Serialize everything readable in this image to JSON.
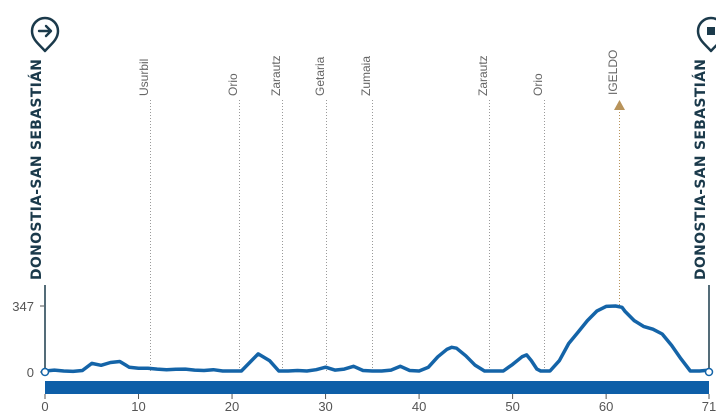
{
  "chart_data": {
    "type": "area",
    "title": "",
    "xlabel": "",
    "ylabel": "",
    "xlim": [
      0,
      71
    ],
    "ylim": [
      0,
      347
    ],
    "x_ticks": [
      0,
      10,
      20,
      30,
      40,
      50,
      60,
      71
    ],
    "y_ticks": [
      0,
      347
    ],
    "start_label": "DONOSTIA-SAN SEBASTIÁN",
    "finish_label": "DONOSTIA-SAN SEBASTIÁN",
    "start_icon": "arrow-right-pin-icon",
    "finish_icon": "finish-flag-pin-icon",
    "colors": {
      "profile": "#1464a8",
      "axis_band": "#0e5fa8",
      "city": "#1b3a4b",
      "climb_marker": "#b8935a"
    },
    "locations": [
      {
        "name": "Usurbil",
        "km": 11.2
      },
      {
        "name": "Orio",
        "km": 20.7
      },
      {
        "name": "Zarautz",
        "km": 25.3
      },
      {
        "name": "Getaria",
        "km": 30.0
      },
      {
        "name": "Zumaia",
        "km": 35.0
      },
      {
        "name": "Zarautz",
        "km": 47.5
      },
      {
        "name": "Orio",
        "km": 53.4
      },
      {
        "name": "IGELDO",
        "km": 61.4,
        "climb": true
      }
    ],
    "series": [
      {
        "x": [
          0,
          1,
          2,
          3,
          4,
          5,
          6,
          7,
          8,
          9,
          10,
          11,
          12,
          13,
          14,
          15,
          16,
          17,
          18,
          19,
          20,
          21,
          22,
          22.8,
          24,
          25,
          26,
          27,
          28,
          29,
          30,
          31,
          32,
          33,
          34,
          35,
          36,
          37,
          38,
          39,
          40,
          41,
          42,
          43,
          43.5,
          44,
          45,
          46,
          47,
          48,
          49,
          50,
          51,
          51.5,
          52,
          52.6,
          53,
          54,
          55,
          56,
          57,
          58,
          59,
          60,
          61,
          61.7,
          62,
          63,
          64,
          65,
          66,
          67,
          68,
          69,
          70,
          71
        ],
        "values": [
          5,
          10,
          5,
          3,
          8,
          45,
          35,
          50,
          55,
          25,
          20,
          20,
          15,
          12,
          14,
          15,
          10,
          8,
          12,
          5,
          5,
          5,
          55,
          95,
          60,
          5,
          5,
          8,
          5,
          12,
          25,
          10,
          15,
          30,
          8,
          5,
          5,
          10,
          30,
          8,
          5,
          25,
          80,
          120,
          130,
          125,
          85,
          35,
          5,
          5,
          5,
          40,
          80,
          90,
          60,
          15,
          5,
          5,
          60,
          150,
          210,
          270,
          320,
          345,
          347,
          340,
          320,
          270,
          240,
          225,
          200,
          140,
          70,
          5,
          5,
          10
        ]
      }
    ]
  }
}
